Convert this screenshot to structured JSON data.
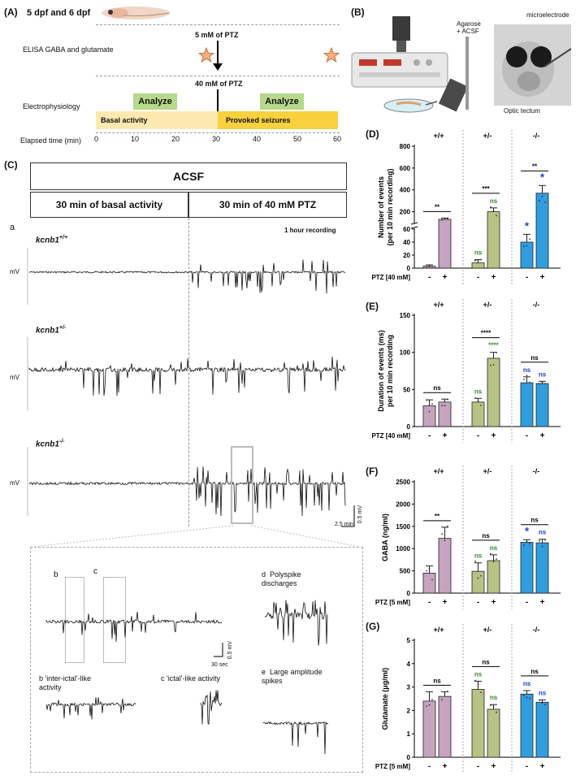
{
  "panelA": {
    "label": "(A)",
    "title": "5 dpf and 6 dpf",
    "elisa": "ELISA GABA and glutamate",
    "ptz5": "5 mM of PTZ",
    "ptz40": "40 mM of PTZ",
    "ephys": "Electrophysiology",
    "analyze1": "Analyze",
    "analyze2": "Analyze",
    "basal": "Basal activity",
    "provoked": "Provoked seizures",
    "elapsed": "Elapsed time (min)",
    "ticks": [
      "0",
      "10",
      "20",
      "30",
      "40",
      "50",
      "60"
    ]
  },
  "panelB": {
    "label": "(B)",
    "agarose": "Agarose\n+ ACSF",
    "microelectrode": "microelectrode",
    "optic": "Optic tectum"
  },
  "panelC": {
    "label": "(C)",
    "acsf": "ACSF",
    "basal": "30 min of basal activity",
    "ptz": "30 min of 40 mM PTZ",
    "a": "a",
    "recording": "1 hour recording",
    "genotypes": [
      "kcnb1",
      "kcnb1",
      "kcnb1"
    ],
    "sups": [
      "+/+",
      "+/-",
      "-/-"
    ],
    "mv": "mV",
    "scale_mv": "0.5 mV",
    "scale_min": "2.5 min",
    "inset_b": "b",
    "inset_c": "c",
    "inset_scale_mv": "0.5 mV",
    "inset_scale_sec": "30 sec",
    "b_caption_letter": "b",
    "b_caption": "'inter-ictal'-like\nactivity",
    "c_caption_letter": "c",
    "c_caption": "'ictal'-like activity",
    "d_letter": "d",
    "d_caption": "Polyspike\ndischarges",
    "e_letter": "e",
    "e_caption": "Large amplitude\nspikes"
  },
  "colors": {
    "wt": "#c6a4bf",
    "het": "#b7c384",
    "ko": "#2f9ee0",
    "green_sig": "#2e8b2e",
    "blue_sig": "#1a3fd1",
    "analyze": "#b6d98a",
    "basal": "#fde9b0",
    "provoked": "#f7d23e"
  },
  "chart_data": [
    {
      "panel": "(D)",
      "type": "bar",
      "ylabel": "Number of events\n(per 10 min recording)",
      "xlabel": "PTZ [40 mM]",
      "groups": [
        "+/+",
        "+/-",
        "-/-"
      ],
      "xticks": [
        "-",
        "+",
        "-",
        "+",
        "-",
        "+"
      ],
      "yticks": [
        "0",
        "20",
        "40",
        "60",
        "200",
        "400",
        "600",
        "800"
      ],
      "values": [
        3,
        130,
        8,
        200,
        40,
        370
      ],
      "errors": [
        2,
        12,
        5,
        35,
        12,
        70
      ],
      "ylim": [
        0,
        800
      ],
      "broken_axis": [
        60,
        100
      ],
      "sig_top": [
        "**",
        "***",
        "**"
      ],
      "sig_bars": [
        "",
        "",
        "ns",
        "ns",
        "*",
        "*"
      ]
    },
    {
      "panel": "(E)",
      "type": "bar",
      "ylabel": "Duration of events (ms)\nper 10 min recording",
      "xlabel": "PTZ [40 mM]",
      "groups": [
        "+/+",
        "+/-",
        "-/-"
      ],
      "xticks": [
        "-",
        "+",
        "-",
        "+",
        "-",
        "+"
      ],
      "yticks": [
        "0",
        "50",
        "100",
        "150"
      ],
      "values": [
        28,
        33,
        33,
        92,
        59,
        58
      ],
      "errors": [
        8,
        4,
        5,
        8,
        8,
        3
      ],
      "ylim": [
        0,
        150
      ],
      "sig_top": [
        "ns",
        "****",
        "ns"
      ],
      "sig_bars": [
        "",
        "",
        "ns",
        "****",
        "ns",
        "ns"
      ]
    },
    {
      "panel": "(F)",
      "type": "bar",
      "ylabel": "GABA (ng/ml)",
      "xlabel": "PTZ [5 mM]",
      "groups": [
        "+/+",
        "+/-",
        "-/-"
      ],
      "xticks": [
        "-",
        "+",
        "-",
        "+",
        "-",
        "+"
      ],
      "yticks": [
        "0",
        "500",
        "1000",
        "1500",
        "2000",
        "2500"
      ],
      "values": [
        450,
        1230,
        490,
        730,
        1140,
        1130
      ],
      "errors": [
        160,
        250,
        190,
        130,
        60,
        80
      ],
      "ylim": [
        0,
        2500
      ],
      "sig_top": [
        "**",
        "ns",
        "ns"
      ],
      "sig_bars": [
        "",
        "",
        "ns",
        "ns",
        "*",
        "ns"
      ]
    },
    {
      "panel": "(G)",
      "type": "bar",
      "ylabel": "Glutamate (μg/ml)",
      "xlabel": "PTZ [5 mM]",
      "groups": [
        "+/+",
        "+/-",
        "-/-"
      ],
      "xticks": [
        "-",
        "+",
        "-",
        "+",
        "-",
        "+"
      ],
      "yticks": [
        "0",
        "1",
        "2",
        "3",
        "4",
        "5"
      ],
      "values": [
        2.4,
        2.6,
        2.9,
        2.05,
        2.7,
        2.35
      ],
      "errors": [
        0.4,
        0.2,
        0.35,
        0.2,
        0.15,
        0.1
      ],
      "ylim": [
        0,
        5
      ],
      "sig_top": [
        "ns",
        "ns",
        "ns"
      ],
      "sig_bars": [
        "",
        "",
        "ns",
        "ns",
        "ns",
        "ns"
      ]
    }
  ]
}
